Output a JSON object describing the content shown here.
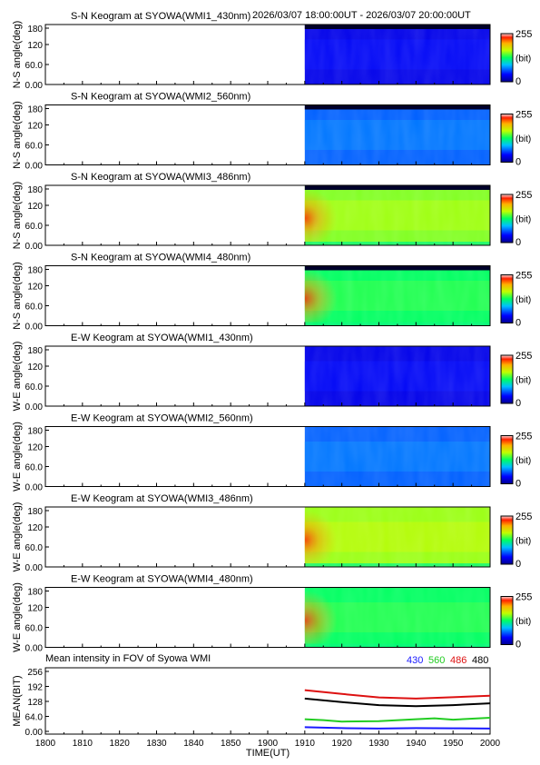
{
  "header": {
    "time_range": "2026/03/07 18:00:00UT - 2026/03/07 20:00:00UT"
  },
  "colorbar": {
    "max_label": "255",
    "unit_label": "(bit)",
    "min_label": "0"
  },
  "chart_data": [
    {
      "type": "heatmap",
      "title": "S-N Keogram at SYOWA(WMI1_430nm)",
      "ylabel": "N-S angle(deg)",
      "yticks": [
        "180",
        "120",
        "60.0",
        "0.00"
      ],
      "ylim": [
        0,
        180
      ],
      "data_start": "19:10",
      "level": 0.12,
      "dark_top_band": true
    },
    {
      "type": "heatmap",
      "title": "S-N Keogram at SYOWA(WMI2_560nm)",
      "ylabel": "N-S angle(deg)",
      "yticks": [
        "180",
        "120",
        "60.0",
        "0.00"
      ],
      "ylim": [
        0,
        180
      ],
      "data_start": "19:10",
      "level": 0.25,
      "dark_top_band": true
    },
    {
      "type": "heatmap",
      "title": "S-N Keogram at SYOWA(WMI3_486nm)",
      "ylabel": "N-S angle(deg)",
      "yticks": [
        "180",
        "120",
        "60.0",
        "0.00"
      ],
      "ylim": [
        0,
        180
      ],
      "data_start": "19:10",
      "level": 0.6,
      "dark_top_band": true
    },
    {
      "type": "heatmap",
      "title": "S-N Keogram at SYOWA(WMI4_480nm)",
      "ylabel": "N-S angle(deg)",
      "yticks": [
        "180",
        "120",
        "60.0",
        "0.00"
      ],
      "ylim": [
        0,
        180
      ],
      "data_start": "19:10",
      "level": 0.5,
      "dark_top_band": true
    },
    {
      "type": "heatmap",
      "title": "E-W Keogram at SYOWA(WMI1_430nm)",
      "ylabel": "W-E angle(deg)",
      "yticks": [
        "180",
        "120",
        "60.0",
        "0.00"
      ],
      "ylim": [
        0,
        180
      ],
      "data_start": "19:10",
      "level": 0.12,
      "dark_top_band": false
    },
    {
      "type": "heatmap",
      "title": "E-W Keogram at SYOWA(WMI2_560nm)",
      "ylabel": "W-E angle(deg)",
      "yticks": [
        "180",
        "120",
        "60.0",
        "0.00"
      ],
      "ylim": [
        0,
        180
      ],
      "data_start": "19:10",
      "level": 0.25,
      "dark_top_band": false
    },
    {
      "type": "heatmap",
      "title": "E-W Keogram at SYOWA(WMI3_486nm)",
      "ylabel": "W-E angle(deg)",
      "yticks": [
        "180",
        "120",
        "60.0",
        "0.00"
      ],
      "ylim": [
        0,
        180
      ],
      "data_start": "19:10",
      "level": 0.62,
      "dark_top_band": false
    },
    {
      "type": "heatmap",
      "title": "E-W Keogram at SYOWA(WMI4_480nm)",
      "ylabel": "W-E angle(deg)",
      "yticks": [
        "180",
        "120",
        "60.0",
        "0.00"
      ],
      "ylim": [
        0,
        180
      ],
      "data_start": "19:10",
      "level": 0.5,
      "dark_top_band": false
    },
    {
      "type": "line",
      "title": "Mean intensity in FOV of Syowa WMI",
      "ylabel": "MEAN(BIT)",
      "yticks": [
        "256",
        "192",
        "128",
        "64.0",
        "0.00"
      ],
      "ylim": [
        0,
        256
      ],
      "xlabel": "TIME(UT)",
      "xticks": [
        "1800",
        "1810",
        "1820",
        "1830",
        "1840",
        "1850",
        "1900",
        "1910",
        "1920",
        "1930",
        "1940",
        "1950",
        "2000"
      ],
      "x": [
        0,
        10,
        20,
        30,
        40,
        50,
        60,
        70,
        80,
        90,
        100,
        110,
        120
      ],
      "x_units": "minutes after 18:00 UT",
      "series": [
        {
          "name": "430",
          "color": "#1a1aff",
          "x": [
            70,
            80,
            90,
            100,
            110,
            120
          ],
          "values": [
            18,
            14,
            12,
            14,
            13,
            12
          ]
        },
        {
          "name": "560",
          "color": "#22cc22",
          "x": [
            70,
            75,
            80,
            90,
            100,
            105,
            110,
            120
          ],
          "values": [
            52,
            48,
            42,
            44,
            52,
            56,
            50,
            58
          ]
        },
        {
          "name": "486",
          "color": "#dd1111",
          "x": [
            70,
            80,
            90,
            100,
            110,
            120
          ],
          "values": [
            176,
            160,
            145,
            140,
            146,
            152
          ]
        },
        {
          "name": "480",
          "color": "#000000",
          "x": [
            70,
            80,
            90,
            100,
            110,
            120
          ],
          "values": [
            140,
            125,
            112,
            108,
            112,
            120
          ]
        }
      ]
    }
  ]
}
